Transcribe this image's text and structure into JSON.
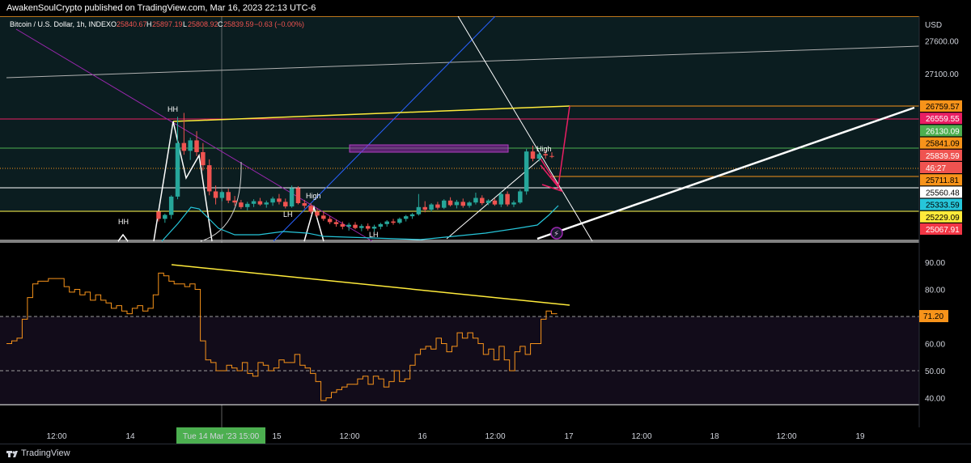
{
  "header": {
    "publish_line": "AwakenSoulCrypto published on TradingView.com, Mar 16, 2023 22:13 UTC-6"
  },
  "legend": {
    "symbol": "Bitcoin / U.S. Dollar, 1h, INDEX",
    "o_label": "O",
    "o_value": "25840.67",
    "h_label": "H",
    "h_value": "25897.19",
    "l_label": "L",
    "l_value": "25808.92",
    "c_label": "C",
    "c_value": "25839.59",
    "change": "−0.63 (−0.00%)"
  },
  "axis": {
    "currency": "USD"
  },
  "footer": {
    "brand": "TradingView"
  },
  "colors": {
    "up": "#26a69a",
    "down": "#ef5350",
    "orange": "#f7931a",
    "yellow": "#ffeb3b",
    "magenta": "#e91e63",
    "cyan": "#26c6da",
    "blue": "#2962ff",
    "purple": "#9c27b0"
  },
  "chart_data": [
    {
      "type": "candlestick",
      "title": "Bitcoin / U.S. Dollar, 1h, INDEX",
      "y_ticks": [
        27600,
        27100
      ],
      "price_labels": [
        {
          "value": "26759.57",
          "bg": "#f7931a",
          "fg": "#000000"
        },
        {
          "value": "26559.55",
          "bg": "#e91e63",
          "fg": "#ffffff"
        },
        {
          "value": "26130.09",
          "bg": "#4caf50",
          "fg": "#ffffff"
        },
        {
          "value": "25841.09",
          "bg": "#f7931a",
          "fg": "#000000"
        },
        {
          "value": "25839.59",
          "bg": "#ef5350",
          "fg": "#ffffff"
        },
        {
          "value": "46:27",
          "bg": "#ef5350",
          "fg": "#ffffff"
        },
        {
          "value": "25711.81",
          "bg": "#f7931a",
          "fg": "#000000"
        },
        {
          "value": "25560.48",
          "bg": "#ffffff",
          "fg": "#000000"
        },
        {
          "value": "25333.59",
          "bg": "#26c6da",
          "fg": "#000000"
        },
        {
          "value": "25229.09",
          "bg": "#ffeb3b",
          "fg": "#000000"
        },
        {
          "value": "25067.91",
          "bg": "#f23645",
          "fg": "#ffffff"
        }
      ],
      "annotations": [
        "HH",
        "HH",
        "LH",
        "High",
        "LH",
        "High"
      ],
      "candles": [
        {
          "o": 24990,
          "h": 25000,
          "l": 24840,
          "c": 24880
        },
        {
          "o": 24880,
          "h": 24960,
          "l": 24820,
          "c": 24940
        },
        {
          "o": 24940,
          "h": 25240,
          "l": 24880,
          "c": 25220
        },
        {
          "o": 25220,
          "h": 26440,
          "l": 25180,
          "c": 26040
        },
        {
          "o": 26040,
          "h": 26500,
          "l": 25860,
          "c": 25920
        },
        {
          "o": 25920,
          "h": 26120,
          "l": 25780,
          "c": 26080
        },
        {
          "o": 26080,
          "h": 26220,
          "l": 25840,
          "c": 25900
        },
        {
          "o": 25900,
          "h": 26040,
          "l": 25620,
          "c": 25700
        },
        {
          "o": 25700,
          "h": 25790,
          "l": 25240,
          "c": 25300
        },
        {
          "o": 25300,
          "h": 25390,
          "l": 25100,
          "c": 25200
        },
        {
          "o": 25200,
          "h": 25310,
          "l": 25150,
          "c": 25290
        },
        {
          "o": 25290,
          "h": 25340,
          "l": 25120,
          "c": 25160
        },
        {
          "o": 25160,
          "h": 25230,
          "l": 25080,
          "c": 25130
        },
        {
          "o": 25130,
          "h": 25170,
          "l": 25030,
          "c": 25060
        },
        {
          "o": 25060,
          "h": 25140,
          "l": 25010,
          "c": 25110
        },
        {
          "o": 25110,
          "h": 25180,
          "l": 25060,
          "c": 25150
        },
        {
          "o": 25150,
          "h": 25200,
          "l": 25080,
          "c": 25100
        },
        {
          "o": 25100,
          "h": 25160,
          "l": 25050,
          "c": 25130
        },
        {
          "o": 25130,
          "h": 25220,
          "l": 25080,
          "c": 25190
        },
        {
          "o": 25190,
          "h": 25260,
          "l": 25100,
          "c": 25140
        },
        {
          "o": 25140,
          "h": 25190,
          "l": 25040,
          "c": 25070
        },
        {
          "o": 25070,
          "h": 25390,
          "l": 25050,
          "c": 25350
        },
        {
          "o": 25350,
          "h": 25380,
          "l": 25100,
          "c": 25120
        },
        {
          "o": 25120,
          "h": 25170,
          "l": 25040,
          "c": 25080
        },
        {
          "o": 25080,
          "h": 25120,
          "l": 24960,
          "c": 24990
        },
        {
          "o": 24990,
          "h": 25040,
          "l": 24900,
          "c": 24930
        },
        {
          "o": 24930,
          "h": 24980,
          "l": 24850,
          "c": 24880
        },
        {
          "o": 24880,
          "h": 24920,
          "l": 24800,
          "c": 24830
        },
        {
          "o": 24830,
          "h": 24870,
          "l": 24760,
          "c": 24800
        },
        {
          "o": 24800,
          "h": 24840,
          "l": 24720,
          "c": 24760
        },
        {
          "o": 24760,
          "h": 24820,
          "l": 24700,
          "c": 24790
        },
        {
          "o": 24790,
          "h": 24830,
          "l": 24720,
          "c": 24740
        },
        {
          "o": 24740,
          "h": 24800,
          "l": 24690,
          "c": 24770
        },
        {
          "o": 24770,
          "h": 24810,
          "l": 24700,
          "c": 24730
        },
        {
          "o": 24730,
          "h": 24790,
          "l": 24680,
          "c": 24760
        },
        {
          "o": 24760,
          "h": 24820,
          "l": 24720,
          "c": 24800
        },
        {
          "o": 24800,
          "h": 24860,
          "l": 24760,
          "c": 24840
        },
        {
          "o": 24840,
          "h": 24880,
          "l": 24790,
          "c": 24820
        },
        {
          "o": 24820,
          "h": 24900,
          "l": 24800,
          "c": 24880
        },
        {
          "o": 24880,
          "h": 24940,
          "l": 24840,
          "c": 24920
        },
        {
          "o": 24920,
          "h": 24970,
          "l": 24880,
          "c": 24950
        },
        {
          "o": 24950,
          "h": 25260,
          "l": 24930,
          "c": 25060
        },
        {
          "o": 25060,
          "h": 25150,
          "l": 24980,
          "c": 25020
        },
        {
          "o": 25020,
          "h": 25120,
          "l": 24990,
          "c": 25100
        },
        {
          "o": 25100,
          "h": 25140,
          "l": 25020,
          "c": 25050
        },
        {
          "o": 25050,
          "h": 25180,
          "l": 25030,
          "c": 25160
        },
        {
          "o": 25160,
          "h": 25210,
          "l": 25070,
          "c": 25090
        },
        {
          "o": 25090,
          "h": 25170,
          "l": 25040,
          "c": 25140
        },
        {
          "o": 25140,
          "h": 25190,
          "l": 25050,
          "c": 25080
        },
        {
          "o": 25080,
          "h": 25150,
          "l": 25050,
          "c": 25130
        },
        {
          "o": 25130,
          "h": 25280,
          "l": 25100,
          "c": 25200
        },
        {
          "o": 25200,
          "h": 25240,
          "l": 25090,
          "c": 25120
        },
        {
          "o": 25120,
          "h": 25180,
          "l": 25090,
          "c": 25160
        },
        {
          "o": 25160,
          "h": 25190,
          "l": 25080,
          "c": 25100
        },
        {
          "o": 25100,
          "h": 25300,
          "l": 25060,
          "c": 25260
        },
        {
          "o": 25260,
          "h": 25300,
          "l": 25070,
          "c": 25100
        },
        {
          "o": 25100,
          "h": 25160,
          "l": 25060,
          "c": 25130
        },
        {
          "o": 25130,
          "h": 25330,
          "l": 25110,
          "c": 25300
        },
        {
          "o": 25300,
          "h": 25950,
          "l": 25250,
          "c": 25910
        },
        {
          "o": 25910,
          "h": 26000,
          "l": 25760,
          "c": 25800
        },
        {
          "o": 25800,
          "h": 25900,
          "l": 25760,
          "c": 25870
        },
        {
          "o": 25870,
          "h": 25920,
          "l": 25800,
          "c": 25850
        },
        {
          "o": 25840.67,
          "h": 25897.19,
          "l": 25808.92,
          "c": 25839.59
        }
      ],
      "rsi": {
        "y_ticks": [
          90.0,
          80.0,
          70.0,
          60.0,
          50.0,
          40.0
        ],
        "y_tick_labels": [
          "90.00",
          "80.00",
          "70.00",
          "60.00",
          "50.00",
          "40.00"
        ],
        "current_label": "71.20",
        "values": [
          60,
          61,
          62,
          69,
          77,
          82,
          83,
          83,
          84,
          84,
          84,
          81,
          79,
          80,
          78,
          79,
          76,
          78,
          76,
          75,
          73,
          74,
          72,
          71,
          73,
          74,
          72,
          73,
          78,
          86,
          85,
          83,
          82,
          82,
          81,
          82,
          80,
          61,
          54,
          53,
          50,
          50,
          52,
          51,
          50,
          53,
          49,
          48,
          53,
          52,
          50,
          51,
          54,
          53,
          53,
          56,
          52,
          51,
          49,
          46,
          39,
          40,
          42,
          43,
          44,
          45,
          45,
          47,
          48,
          45,
          48,
          47,
          44,
          46,
          50,
          46,
          47,
          52,
          56,
          58,
          59,
          58,
          62,
          60,
          57,
          59,
          64,
          62,
          64,
          62,
          60,
          56,
          58,
          54,
          59,
          54,
          50,
          57,
          59,
          56,
          60,
          60,
          69,
          72,
          71,
          71.2
        ]
      }
    }
  ],
  "x_axis": {
    "labels": [
      "12:00",
      "14",
      "Tue 14 Mar '23   15:00",
      "15",
      "12:00",
      "16",
      "12:00",
      "17",
      "12:00",
      "18",
      "12:00",
      "19"
    ]
  }
}
